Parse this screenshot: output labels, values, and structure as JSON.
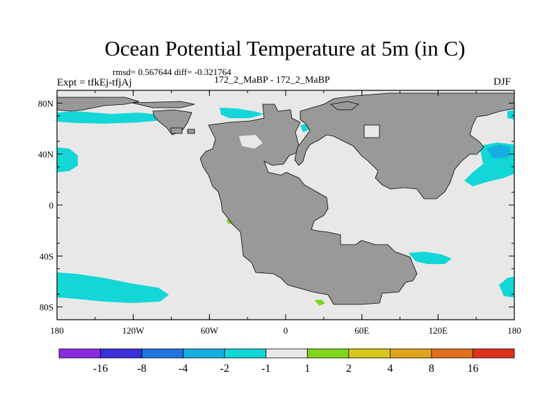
{
  "header": {
    "title": "Ocean Potential Temperature at 5m (in C)",
    "stats": "rmsd= 0.567644 diff= -0.321764",
    "experiment": "Expt = tfkEj-tfjAj",
    "runs": "172_2_MaBP - 172_2_MaBP",
    "season": "DJF"
  },
  "chart_data": {
    "type": "heatmap",
    "x_ticks": [
      "180",
      "120W",
      "60W",
      "0",
      "60E",
      "120E",
      "180"
    ],
    "x_values": [
      -180,
      -120,
      -60,
      0,
      60,
      120,
      180
    ],
    "y_ticks": [
      "80N",
      "40N",
      "0",
      "40S",
      "80S"
    ],
    "y_values": [
      80,
      40,
      0,
      -40,
      -80
    ],
    "xlim": [
      -180,
      180
    ],
    "ylim": [
      -90,
      90
    ],
    "colorbar": {
      "levels": [
        "-16",
        "-8",
        "-4",
        "-2",
        "-1",
        "1",
        "2",
        "4",
        "8",
        "16"
      ],
      "colors": [
        "#8a2be2",
        "#3a2fd9",
        "#1e74e0",
        "#16aee0",
        "#13d6d6",
        "#e8e8e8",
        "#7fd61c",
        "#d6c91c",
        "#e0a41c",
        "#e0701c",
        "#e0301c"
      ]
    },
    "land_color": "#999999",
    "background_color": "#e8e8e8"
  }
}
